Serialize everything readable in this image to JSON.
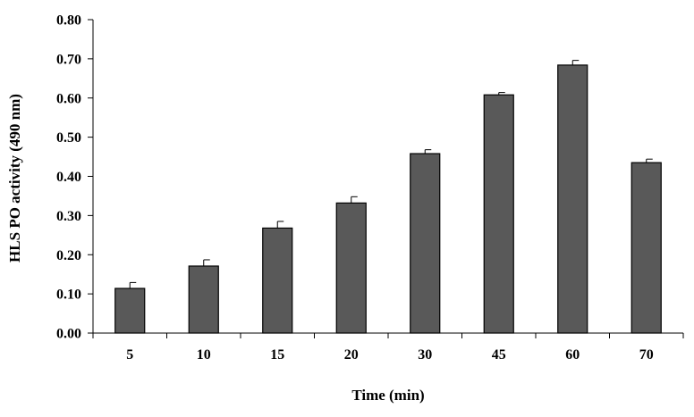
{
  "chart_data": {
    "type": "bar",
    "title": "",
    "xlabel": "Time (min)",
    "ylabel": "HLS PO activity (490 nm)",
    "categories": [
      "5",
      "10",
      "15",
      "20",
      "30",
      "45",
      "60",
      "70"
    ],
    "values": [
      0.114,
      0.171,
      0.268,
      0.332,
      0.458,
      0.608,
      0.684,
      0.435
    ],
    "error_bars": [
      0.015,
      0.016,
      0.017,
      0.016,
      0.01,
      0.006,
      0.012,
      0.009
    ],
    "ylim": [
      0,
      0.8
    ],
    "yticks": [
      "0.00",
      "0.10",
      "0.20",
      "0.30",
      "0.40",
      "0.50",
      "0.60",
      "0.70",
      "0.80"
    ],
    "grid": false,
    "legend": "none",
    "bar_color": "#595959",
    "bar_edge_color": "#000000"
  }
}
